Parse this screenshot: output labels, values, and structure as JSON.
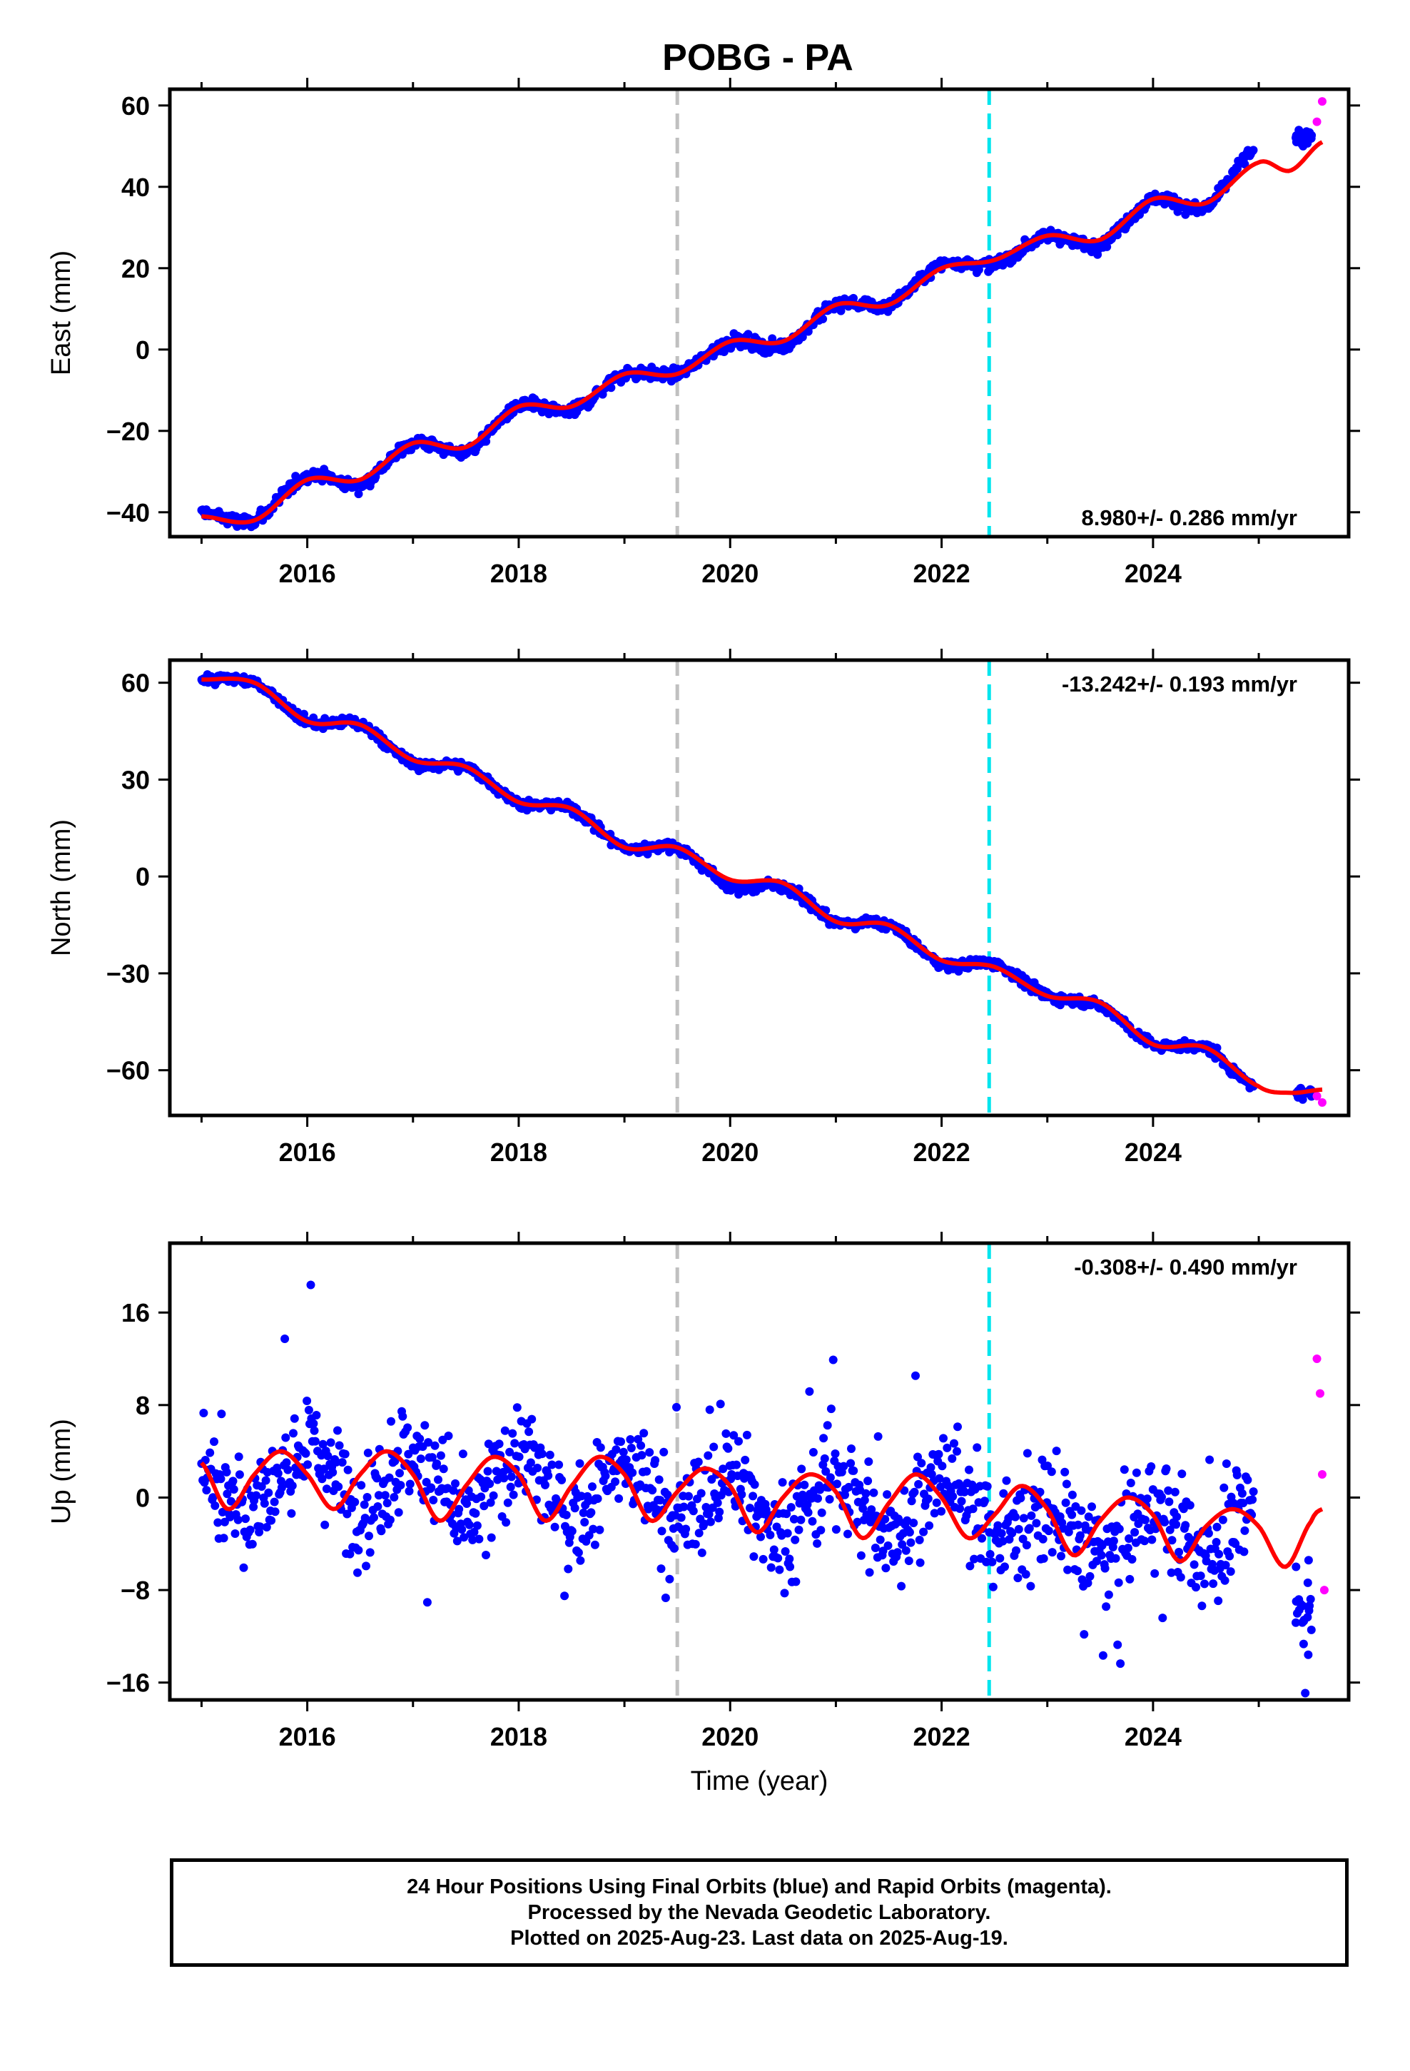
{
  "title": "POBG - PA",
  "footer": {
    "line1": "24 Hour Positions Using Final Orbits (blue) and Rapid Orbits (magenta).",
    "line2": "Processed by the Nevada Geodetic Laboratory.",
    "line3": "Plotted on 2025-Aug-23. Last data on 2025-Aug-19."
  },
  "colors": {
    "final_orbits": "#0000ff",
    "rapid_orbits": "#ff00ff",
    "model_fit": "#ff0000",
    "marker_gray": "#c0c0c0",
    "marker_cyan": "#00e5ee"
  },
  "chart_data": [
    {
      "type": "scatter",
      "ylabel": "East (mm)",
      "xlabel": "",
      "xlim": [
        2014.7,
        2025.85
      ],
      "ylim": [
        -46,
        64
      ],
      "xticks": [
        2016,
        2018,
        2020,
        2022,
        2024
      ],
      "yticks": [
        -40,
        -20,
        0,
        20,
        40,
        60
      ],
      "rate_label": "8.980+/- 0.286 mm/yr",
      "vertical_lines": [
        2019.5,
        2022.45
      ],
      "series": [
        {
          "role": "final",
          "x": [
            2015.0,
            2015.5,
            2016.0,
            2016.5,
            2017.0,
            2017.5,
            2018.0,
            2018.5,
            2019.0,
            2019.5,
            2020.0,
            2020.5,
            2021.0,
            2021.5,
            2022.0,
            2022.5,
            2023.0,
            2023.5,
            2024.0,
            2024.5,
            2024.95
          ],
          "y": [
            -40,
            -42,
            -31,
            -33,
            -23,
            -25,
            -14,
            -15,
            -6,
            -6,
            2,
            1,
            11,
            11,
            21,
            21,
            28,
            26,
            37,
            35,
            49
          ]
        },
        {
          "role": "rapid",
          "x": [
            2025.55,
            2025.6
          ],
          "y": [
            56,
            61
          ]
        },
        {
          "role": "model",
          "x": [
            2015.0,
            2015.5,
            2016.0,
            2016.5,
            2017.0,
            2017.5,
            2018.0,
            2018.5,
            2019.0,
            2019.5,
            2020.0,
            2020.5,
            2021.0,
            2021.5,
            2022.0,
            2022.5,
            2023.0,
            2023.5,
            2024.0,
            2024.5,
            2025.0,
            2025.3,
            2025.6
          ],
          "y": [
            -41,
            -42,
            -32,
            -32,
            -23,
            -24,
            -14,
            -14,
            -6,
            -6,
            2,
            2,
            11,
            11,
            20,
            22,
            28,
            27,
            37,
            36,
            46,
            44,
            51
          ]
        }
      ]
    },
    {
      "type": "scatter",
      "ylabel": "North (mm)",
      "xlabel": "",
      "xlim": [
        2014.7,
        2025.85
      ],
      "ylim": [
        -74,
        67
      ],
      "xticks": [
        2016,
        2018,
        2020,
        2022,
        2024
      ],
      "yticks": [
        -60,
        -30,
        0,
        30,
        60
      ],
      "rate_label": "-13.242+/- 0.193 mm/yr",
      "vertical_lines": [
        2019.5,
        2022.45
      ],
      "series": [
        {
          "role": "final",
          "x": [
            2015.0,
            2015.5,
            2016.0,
            2016.5,
            2017.0,
            2017.5,
            2018.0,
            2018.5,
            2019.0,
            2019.5,
            2020.0,
            2020.5,
            2021.0,
            2021.5,
            2022.0,
            2022.5,
            2023.0,
            2023.5,
            2024.0,
            2024.5,
            2024.95
          ],
          "y": [
            61,
            60,
            48,
            47,
            35,
            34,
            23,
            21,
            9,
            9,
            -3,
            -3,
            -14,
            -15,
            -27,
            -27,
            -37,
            -40,
            -52,
            -53,
            -65
          ]
        },
        {
          "role": "rapid",
          "x": [
            2025.55,
            2025.6
          ],
          "y": [
            -68,
            -70
          ]
        },
        {
          "role": "model",
          "x": [
            2015.0,
            2015.5,
            2016.0,
            2016.5,
            2017.0,
            2017.5,
            2018.0,
            2018.5,
            2019.0,
            2019.5,
            2020.0,
            2020.5,
            2021.0,
            2021.5,
            2022.0,
            2022.5,
            2023.0,
            2023.5,
            2024.0,
            2024.5,
            2025.0,
            2025.3,
            2025.6
          ],
          "y": [
            61,
            60,
            48,
            47,
            36,
            34,
            23,
            21,
            9,
            9,
            -1,
            -2,
            -14,
            -15,
            -26,
            -28,
            -37,
            -39,
            -52,
            -53,
            -65,
            -67,
            -66
          ]
        }
      ]
    },
    {
      "type": "scatter",
      "ylabel": "Up (mm)",
      "xlabel": "Time (year)",
      "xlim": [
        2014.7,
        2025.85
      ],
      "ylim": [
        -17.5,
        22
      ],
      "xticks": [
        2016,
        2018,
        2020,
        2022,
        2024
      ],
      "yticks": [
        -16,
        -8,
        0,
        8,
        16
      ],
      "rate_label": "-0.308+/- 0.490 mm/yr",
      "vertical_lines": [
        2019.5,
        2022.45
      ],
      "series": [
        {
          "role": "final",
          "x": [
            2015.0,
            2015.5,
            2016.0,
            2016.5,
            2017.0,
            2017.5,
            2018.0,
            2018.5,
            2019.0,
            2019.5,
            2020.0,
            2020.5,
            2021.0,
            2021.5,
            2022.0,
            2022.5,
            2023.0,
            2023.5,
            2024.0,
            2024.5,
            2024.95
          ],
          "y": [
            3,
            -1,
            5,
            -1,
            4,
            -2,
            4,
            -2,
            3,
            -2,
            2,
            -3,
            2,
            -3,
            2,
            -3,
            -1,
            -5,
            -1,
            -5,
            -1
          ]
        },
        {
          "role": "rapid",
          "x": [
            2025.55,
            2025.58,
            2025.6,
            2025.62
          ],
          "y": [
            12,
            9,
            2,
            -8
          ]
        },
        {
          "role": "model",
          "x": [
            2015.0,
            2015.25,
            2015.5,
            2015.75,
            2016.0,
            2016.25,
            2016.5,
            2016.75,
            2017.0,
            2017.25,
            2017.5,
            2017.75,
            2018.0,
            2018.25,
            2018.5,
            2018.75,
            2019.0,
            2019.25,
            2019.5,
            2019.75,
            2020.0,
            2020.25,
            2020.5,
            2020.75,
            2021.0,
            2021.25,
            2021.5,
            2021.75,
            2022.0,
            2022.25,
            2022.5,
            2022.75,
            2023.0,
            2023.25,
            2023.5,
            2023.75,
            2024.0,
            2024.25,
            2024.5,
            2024.75,
            2025.0,
            2025.25,
            2025.5,
            2025.6
          ],
          "y": [
            3,
            -1,
            2,
            4,
            2,
            -1,
            2,
            4,
            2,
            -2,
            1,
            3.5,
            2,
            -2,
            1,
            3.5,
            2,
            -2,
            0.5,
            2.5,
            1,
            -3,
            0,
            2,
            0.5,
            -3.5,
            -0.5,
            2,
            0,
            -3.5,
            -1.5,
            1,
            -1,
            -5,
            -2,
            0,
            -1.5,
            -5.5,
            -2.5,
            -1,
            -2.5,
            -6,
            -2,
            -1
          ]
        }
      ]
    }
  ]
}
